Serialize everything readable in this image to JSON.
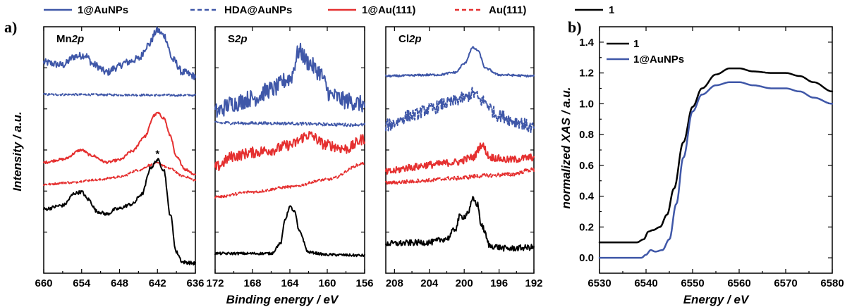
{
  "panels": {
    "a": "a)",
    "b": "b)"
  },
  "legend_a": [
    {
      "name": "1@AuNPs",
      "color": "#3f57a8",
      "dash": false
    },
    {
      "name": "HDA@AuNPs",
      "color": "#3f57a8",
      "dash": true
    },
    {
      "name": "1@Au(111)",
      "color": "#e53030",
      "dash": false
    },
    {
      "name": "Au(111)",
      "color": "#e53030",
      "dash": true
    },
    {
      "name": "1",
      "color": "#000000",
      "dash": false
    }
  ],
  "colors": {
    "blue": "#3f57a8",
    "red": "#e53030",
    "black": "#000000"
  },
  "chart_data": [
    {
      "type": "line",
      "panel": "a",
      "title": "Mn2p",
      "title_main": "Mn",
      "title_italic": "2p",
      "xlabel": "Binding energy / eV",
      "ylabel": "Intensity / a.u.",
      "xlim": [
        660,
        636
      ],
      "xticks": [
        "660",
        "654",
        "648",
        "642",
        "636"
      ],
      "annotation": "*",
      "series": [
        {
          "name": "1@AuNPs",
          "color": "#3f57a8",
          "dash": false,
          "noise": 0.015,
          "points": [
            [
              660,
              0.855
            ],
            [
              657,
              0.845
            ],
            [
              655,
              0.88
            ],
            [
              653.5,
              0.885
            ],
            [
              652,
              0.845
            ],
            [
              650,
              0.815
            ],
            [
              648.5,
              0.835
            ],
            [
              647,
              0.855
            ],
            [
              645,
              0.87
            ],
            [
              643.5,
              0.925
            ],
            [
              642,
              0.985
            ],
            [
              641,
              0.965
            ],
            [
              639.5,
              0.865
            ],
            [
              638,
              0.815
            ],
            [
              636,
              0.8
            ]
          ]
        },
        {
          "name": "HDA@AuNPs",
          "color": "#3f57a8",
          "dash": true,
          "noise": 0.004,
          "points": [
            [
              660,
              0.725
            ],
            [
              636,
              0.722
            ]
          ]
        },
        {
          "name": "1@Au(111)",
          "color": "#e53030",
          "dash": false,
          "noise": 0.005,
          "points": [
            [
              660,
              0.45
            ],
            [
              657,
              0.462
            ],
            [
              654,
              0.5
            ],
            [
              652.5,
              0.478
            ],
            [
              650,
              0.45
            ],
            [
              648,
              0.46
            ],
            [
              646,
              0.495
            ],
            [
              644,
              0.555
            ],
            [
              642.5,
              0.64
            ],
            [
              642,
              0.65
            ],
            [
              641,
              0.63
            ],
            [
              640,
              0.56
            ],
            [
              639,
              0.47
            ],
            [
              637.5,
              0.42
            ],
            [
              636,
              0.4
            ]
          ]
        },
        {
          "name": "Au(111)",
          "color": "#e53030",
          "dash": true,
          "noise": 0.004,
          "points": [
            [
              660,
              0.36
            ],
            [
              656,
              0.368
            ],
            [
              652,
              0.378
            ],
            [
              648,
              0.39
            ],
            [
              645,
              0.418
            ],
            [
              643,
              0.44
            ],
            [
              642,
              0.446
            ],
            [
              640,
              0.425
            ],
            [
              638,
              0.395
            ],
            [
              636,
              0.378
            ]
          ]
        },
        {
          "name": "1",
          "color": "#000000",
          "dash": false,
          "noise": 0.007,
          "points": [
            [
              660,
              0.26
            ],
            [
              657,
              0.275
            ],
            [
              655,
              0.325
            ],
            [
              654,
              0.33
            ],
            [
              653,
              0.3
            ],
            [
              651.5,
              0.25
            ],
            [
              650,
              0.24
            ],
            [
              648.5,
              0.26
            ],
            [
              646,
              0.28
            ],
            [
              644.5,
              0.32
            ],
            [
              643,
              0.43
            ],
            [
              642,
              0.46
            ],
            [
              641,
              0.42
            ],
            [
              640,
              0.24
            ],
            [
              639,
              0.085
            ],
            [
              638,
              0.045
            ],
            [
              636,
              0.04
            ]
          ]
        }
      ]
    },
    {
      "type": "line",
      "panel": "a",
      "title": "S2p",
      "title_main": "S",
      "title_italic": "2p",
      "xlabel": "Binding energy / eV",
      "xlim": [
        172,
        156
      ],
      "xticks": [
        "172",
        "168",
        "164",
        "160",
        "156"
      ],
      "series": [
        {
          "name": "1@AuNPs",
          "color": "#3f57a8",
          "dash": false,
          "noise": 0.035,
          "points": [
            [
              172,
              0.655
            ],
            [
              170,
              0.69
            ],
            [
              168,
              0.71
            ],
            [
              166,
              0.745
            ],
            [
              164,
              0.79
            ],
            [
              163,
              0.9
            ],
            [
              162,
              0.855
            ],
            [
              161,
              0.82
            ],
            [
              159.5,
              0.72
            ],
            [
              158,
              0.7
            ],
            [
              156,
              0.685
            ]
          ]
        },
        {
          "name": "HDA@AuNPs",
          "color": "#3f57a8",
          "dash": true,
          "noise": 0.006,
          "points": [
            [
              172,
              0.61
            ],
            [
              166,
              0.608
            ],
            [
              156,
              0.602
            ]
          ]
        },
        {
          "name": "1@Au(111)",
          "color": "#e53030",
          "dash": false,
          "noise": 0.022,
          "points": [
            [
              172,
              0.43
            ],
            [
              170,
              0.475
            ],
            [
              168,
              0.49
            ],
            [
              166,
              0.5
            ],
            [
              164,
              0.52
            ],
            [
              162,
              0.56
            ],
            [
              160,
              0.52
            ],
            [
              158,
              0.505
            ],
            [
              156,
              0.545
            ]
          ]
        },
        {
          "name": "Au(111)",
          "color": "#e53030",
          "dash": true,
          "noise": 0.005,
          "points": [
            [
              172,
              0.31
            ],
            [
              168,
              0.33
            ],
            [
              164,
              0.35
            ],
            [
              160,
              0.38
            ],
            [
              156,
              0.445
            ]
          ]
        },
        {
          "name": "1",
          "color": "#000000",
          "dash": false,
          "noise": 0.005,
          "points": [
            [
              172,
              0.08
            ],
            [
              166,
              0.08
            ],
            [
              165,
              0.12
            ],
            [
              164.5,
              0.22
            ],
            [
              164,
              0.27
            ],
            [
              163.5,
              0.25
            ],
            [
              163,
              0.17
            ],
            [
              162,
              0.085
            ],
            [
              160,
              0.075
            ],
            [
              156,
              0.072
            ]
          ]
        }
      ]
    },
    {
      "type": "line",
      "panel": "a",
      "title": "Cl2p",
      "title_main": "Cl",
      "title_italic": "2p",
      "xlabel": "Binding energy / eV",
      "xlim": [
        209,
        192
      ],
      "xticks": [
        "208",
        "204",
        "200",
        "196",
        "192"
      ],
      "series": [
        {
          "name": "1@AuNPs",
          "color": "#3f57a8",
          "dash": false,
          "noise": 0.004,
          "points": [
            [
              209,
              0.8
            ],
            [
              203,
              0.805
            ],
            [
              201,
              0.815
            ],
            [
              200,
              0.85
            ],
            [
              199,
              0.915
            ],
            [
              198.5,
              0.905
            ],
            [
              197.5,
              0.83
            ],
            [
              196,
              0.805
            ],
            [
              192,
              0.8
            ]
          ]
        },
        {
          "name": "HDA@AuNPs",
          "color": "#3f57a8",
          "dash": true,
          "noise": 0.025,
          "points": [
            [
              209,
              0.6
            ],
            [
              206,
              0.64
            ],
            [
              204,
              0.665
            ],
            [
              202,
              0.69
            ],
            [
              200,
              0.71
            ],
            [
              199,
              0.73
            ],
            [
              198,
              0.7
            ],
            [
              196,
              0.64
            ],
            [
              194,
              0.615
            ],
            [
              192,
              0.59
            ]
          ]
        },
        {
          "name": "1@Au(111)",
          "color": "#e53030",
          "dash": false,
          "noise": 0.015,
          "points": [
            [
              209,
              0.41
            ],
            [
              206,
              0.43
            ],
            [
              204,
              0.44
            ],
            [
              201,
              0.45
            ],
            [
              199,
              0.47
            ],
            [
              198,
              0.52
            ],
            [
              197,
              0.47
            ],
            [
              195,
              0.46
            ],
            [
              192,
              0.47
            ]
          ]
        },
        {
          "name": "Au(111)",
          "color": "#e53030",
          "dash": true,
          "noise": 0.008,
          "points": [
            [
              209,
              0.365
            ],
            [
              205,
              0.375
            ],
            [
              201,
              0.385
            ],
            [
              198,
              0.395
            ],
            [
              195,
              0.4
            ],
            [
              192,
              0.42
            ]
          ]
        },
        {
          "name": "1",
          "color": "#000000",
          "dash": false,
          "noise": 0.012,
          "points": [
            [
              209,
              0.12
            ],
            [
              204,
              0.125
            ],
            [
              202,
              0.14
            ],
            [
              201,
              0.18
            ],
            [
              200.5,
              0.23
            ],
            [
              200,
              0.23
            ],
            [
              199.5,
              0.25
            ],
            [
              199,
              0.3
            ],
            [
              198.5,
              0.28
            ],
            [
              198,
              0.19
            ],
            [
              197,
              0.11
            ],
            [
              195,
              0.1
            ],
            [
              192,
              0.105
            ]
          ]
        }
      ]
    },
    {
      "type": "line",
      "panel": "b",
      "xlabel": "Energy / eV",
      "ylabel": "normalized XAS / a.u.",
      "xlim": [
        6530,
        6580
      ],
      "ylim": [
        -0.1,
        1.5
      ],
      "xticks": [
        "6530",
        "6540",
        "6550",
        "6560",
        "6570",
        "6580"
      ],
      "yticks": [
        "0.0",
        "0.2",
        "0.4",
        "0.6",
        "0.8",
        "1.0",
        "1.2",
        "1.4"
      ],
      "legend": [
        "1",
        "1@AuNPs"
      ],
      "series": [
        {
          "name": "1",
          "color": "#000000",
          "points": [
            [
              6530,
              0.1
            ],
            [
              6538,
              0.1
            ],
            [
              6539.5,
              0.12
            ],
            [
              6540.5,
              0.17
            ],
            [
              6541.5,
              0.18
            ],
            [
              6543,
              0.2
            ],
            [
              6544.5,
              0.28
            ],
            [
              6546,
              0.45
            ],
            [
              6548,
              0.75
            ],
            [
              6550,
              0.98
            ],
            [
              6552,
              1.1
            ],
            [
              6555,
              1.19
            ],
            [
              6558,
              1.23
            ],
            [
              6560,
              1.23
            ],
            [
              6563,
              1.21
            ],
            [
              6567,
              1.2
            ],
            [
              6570,
              1.2
            ],
            [
              6573,
              1.18
            ],
            [
              6576,
              1.14
            ],
            [
              6580,
              1.08
            ]
          ]
        },
        {
          "name": "1@AuNPs",
          "color": "#3f57a8",
          "points": [
            [
              6530,
              0.0
            ],
            [
              6539,
              0.0
            ],
            [
              6540,
              0.02
            ],
            [
              6541,
              0.05
            ],
            [
              6542,
              0.04
            ],
            [
              6543.5,
              0.05
            ],
            [
              6545,
              0.12
            ],
            [
              6546.5,
              0.35
            ],
            [
              6548,
              0.65
            ],
            [
              6550,
              0.95
            ],
            [
              6552,
              1.06
            ],
            [
              6555,
              1.12
            ],
            [
              6558,
              1.14
            ],
            [
              6560,
              1.14
            ],
            [
              6563,
              1.12
            ],
            [
              6567,
              1.1
            ],
            [
              6570,
              1.1
            ],
            [
              6573,
              1.08
            ],
            [
              6576,
              1.04
            ],
            [
              6580,
              1.0
            ]
          ]
        }
      ]
    }
  ]
}
